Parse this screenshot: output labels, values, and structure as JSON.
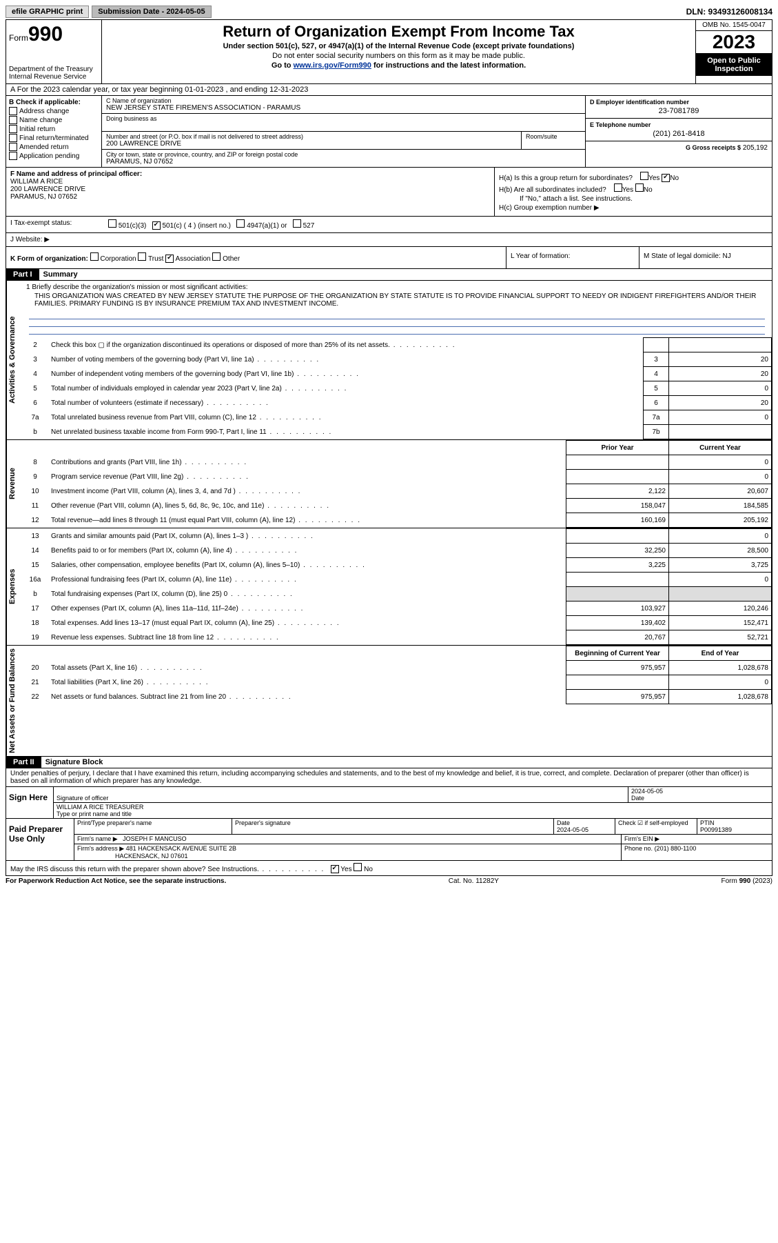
{
  "topbar": {
    "efile": "efile GRAPHIC print",
    "submission_label": "Submission Date - 2024-05-05",
    "dln_label": "DLN: 93493126008134"
  },
  "header": {
    "form_label": "Form",
    "form_num": "990",
    "dept": "Department of the Treasury",
    "irs": "Internal Revenue Service",
    "title": "Return of Organization Exempt From Income Tax",
    "sub1": "Under section 501(c), 527, or 4947(a)(1) of the Internal Revenue Code (except private foundations)",
    "sub2": "Do not enter social security numbers on this form as it may be made public.",
    "sub3a": "Go to ",
    "sub3_link": "www.irs.gov/Form990",
    "sub3b": " for instructions and the latest information.",
    "omb": "OMB No. 1545-0047",
    "year": "2023",
    "open": "Open to Public Inspection"
  },
  "row_a": "A For the 2023 calendar year, or tax year beginning 01-01-2023    , and ending 12-31-2023",
  "box_b": {
    "label": "B Check if applicable:",
    "items": [
      "Address change",
      "Name change",
      "Initial return",
      "Final return/terminated",
      "Amended return",
      "Application pending"
    ]
  },
  "box_c": {
    "name_lbl": "C Name of organization",
    "name": "NEW JERSEY STATE FIREMEN'S ASSOCIATION - PARAMUS",
    "dba_lbl": "Doing business as",
    "addr_lbl": "Number and street (or P.O. box if mail is not delivered to street address)",
    "room_lbl": "Room/suite",
    "addr": "200 LAWRENCE DRIVE",
    "city_lbl": "City or town, state or province, country, and ZIP or foreign postal code",
    "city": "PARAMUS, NJ  07652"
  },
  "box_d": {
    "lbl": "D Employer identification number",
    "val": "23-7081789"
  },
  "box_e": {
    "lbl": "E Telephone number",
    "val": "(201) 261-8418"
  },
  "box_g": {
    "lbl": "G Gross receipts $",
    "val": "205,192"
  },
  "box_f": {
    "lbl": "F Name and address of principal officer:",
    "name": "WILLIAM A RICE",
    "addr1": "200 LAWRENCE DRIVE",
    "addr2": "PARAMUS, NJ  07652"
  },
  "box_h": {
    "ha": "H(a)  Is this a group return for subordinates?",
    "hb": "H(b)  Are all subordinates included?",
    "hb_note": "If \"No,\" attach a list. See instructions.",
    "hc": "H(c)  Group exemption number",
    "yes": "Yes",
    "no": "No"
  },
  "row_i": {
    "lbl": "I   Tax-exempt status:",
    "o1": "501(c)(3)",
    "o2": "501(c) ( 4 ) (insert no.)",
    "o3": "4947(a)(1) or",
    "o4": "527"
  },
  "row_j": {
    "lbl": "J   Website:",
    "arrow": "▶"
  },
  "row_k": {
    "lbl": "K Form of organization:",
    "o1": "Corporation",
    "o2": "Trust",
    "o3": "Association",
    "o4": "Other"
  },
  "row_l": "L Year of formation:",
  "row_m": "M State of legal domicile: NJ",
  "parts": {
    "p1": "Part I",
    "p1_title": "Summary",
    "p2": "Part II",
    "p2_title": "Signature Block"
  },
  "sides": {
    "gov": "Activities & Governance",
    "rev": "Revenue",
    "exp": "Expenses",
    "net": "Net Assets or Fund Balances"
  },
  "mission": {
    "lbl": "1   Briefly describe the organization's mission or most significant activities:",
    "txt": "THIS ORGANIZATION WAS CREATED BY NEW JERSEY STATUTE THE PURPOSE OF THE ORGANIZATION BY STATE STATUTE IS TO PROVIDE FINANCIAL SUPPORT TO NEEDY OR INDIGENT FIREFIGHTERS AND/OR THEIR FAMILIES. PRIMARY FUNDING IS BY INSURANCE PREMIUM TAX AND INVESTMENT INCOME."
  },
  "gov_lines": [
    {
      "n": "2",
      "d": "Check this box ▢ if the organization discontinued its operations or disposed of more than 25% of its net assets.",
      "box": "",
      "v": ""
    },
    {
      "n": "3",
      "d": "Number of voting members of the governing body (Part VI, line 1a)",
      "box": "3",
      "v": "20"
    },
    {
      "n": "4",
      "d": "Number of independent voting members of the governing body (Part VI, line 1b)",
      "box": "4",
      "v": "20"
    },
    {
      "n": "5",
      "d": "Total number of individuals employed in calendar year 2023 (Part V, line 2a)",
      "box": "5",
      "v": "0"
    },
    {
      "n": "6",
      "d": "Total number of volunteers (estimate if necessary)",
      "box": "6",
      "v": "20"
    },
    {
      "n": "7a",
      "d": "Total unrelated business revenue from Part VIII, column (C), line 12",
      "box": "7a",
      "v": "0"
    },
    {
      "n": "b",
      "d": "Net unrelated business taxable income from Form 990-T, Part I, line 11",
      "box": "7b",
      "v": ""
    }
  ],
  "cols": {
    "prior": "Prior Year",
    "current": "Current Year",
    "begin": "Beginning of Current Year",
    "end": "End of Year"
  },
  "rev_lines": [
    {
      "n": "8",
      "d": "Contributions and grants (Part VIII, line 1h)",
      "p": "",
      "c": "0"
    },
    {
      "n": "9",
      "d": "Program service revenue (Part VIII, line 2g)",
      "p": "",
      "c": "0"
    },
    {
      "n": "10",
      "d": "Investment income (Part VIII, column (A), lines 3, 4, and 7d )",
      "p": "2,122",
      "c": "20,607"
    },
    {
      "n": "11",
      "d": "Other revenue (Part VIII, column (A), lines 5, 6d, 8c, 9c, 10c, and 11e)",
      "p": "158,047",
      "c": "184,585"
    },
    {
      "n": "12",
      "d": "Total revenue—add lines 8 through 11 (must equal Part VIII, column (A), line 12)",
      "p": "160,169",
      "c": "205,192"
    }
  ],
  "exp_lines": [
    {
      "n": "13",
      "d": "Grants and similar amounts paid (Part IX, column (A), lines 1–3 )",
      "p": "",
      "c": "0"
    },
    {
      "n": "14",
      "d": "Benefits paid to or for members (Part IX, column (A), line 4)",
      "p": "32,250",
      "c": "28,500"
    },
    {
      "n": "15",
      "d": "Salaries, other compensation, employee benefits (Part IX, column (A), lines 5–10)",
      "p": "3,225",
      "c": "3,725"
    },
    {
      "n": "16a",
      "d": "Professional fundraising fees (Part IX, column (A), line 11e)",
      "p": "",
      "c": "0"
    },
    {
      "n": "b",
      "d": "Total fundraising expenses (Part IX, column (D), line 25) 0",
      "p": "shade",
      "c": "shade"
    },
    {
      "n": "17",
      "d": "Other expenses (Part IX, column (A), lines 11a–11d, 11f–24e)",
      "p": "103,927",
      "c": "120,246"
    },
    {
      "n": "18",
      "d": "Total expenses. Add lines 13–17 (must equal Part IX, column (A), line 25)",
      "p": "139,402",
      "c": "152,471"
    },
    {
      "n": "19",
      "d": "Revenue less expenses. Subtract line 18 from line 12",
      "p": "20,767",
      "c": "52,721"
    }
  ],
  "net_lines": [
    {
      "n": "20",
      "d": "Total assets (Part X, line 16)",
      "p": "975,957",
      "c": "1,028,678"
    },
    {
      "n": "21",
      "d": "Total liabilities (Part X, line 26)",
      "p": "",
      "c": "0"
    },
    {
      "n": "22",
      "d": "Net assets or fund balances. Subtract line 21 from line 20",
      "p": "975,957",
      "c": "1,028,678"
    }
  ],
  "perjury": "Under penalties of perjury, I declare that I have examined this return, including accompanying schedules and statements, and to the best of my knowledge and belief, it is true, correct, and complete. Declaration of preparer (other than officer) is based on all information of which preparer has any knowledge.",
  "sign": {
    "lbl": "Sign Here",
    "sig_lbl": "Signature of officer",
    "name": "WILLIAM A RICE  TREASURER",
    "name_lbl": "Type or print name and title",
    "date_lbl": "Date",
    "date": "2024-05-05"
  },
  "prep": {
    "lbl": "Paid Preparer Use Only",
    "h1": "Print/Type preparer's name",
    "h2": "Preparer's signature",
    "h3": "Date",
    "h4": "Check ☑ if self-employed",
    "h5": "PTIN",
    "date": "2024-05-05",
    "ptin": "P00991389",
    "firm_lbl": "Firm's name   ▶",
    "firm": "JOSEPH F MANCUSO",
    "ein_lbl": "Firm's EIN ▶",
    "addr_lbl": "Firm's address ▶",
    "addr1": "481 HACKENSACK AVENUE SUITE 2B",
    "addr2": "HACKENSACK, NJ  07601",
    "phone_lbl": "Phone no.",
    "phone": "(201) 880-1100"
  },
  "discuss": "May the IRS discuss this return with the preparer shown above? See Instructions.",
  "footer": {
    "l": "For Paperwork Reduction Act Notice, see the separate instructions.",
    "m": "Cat. No. 11282Y",
    "r": "Form 990 (2023)"
  }
}
